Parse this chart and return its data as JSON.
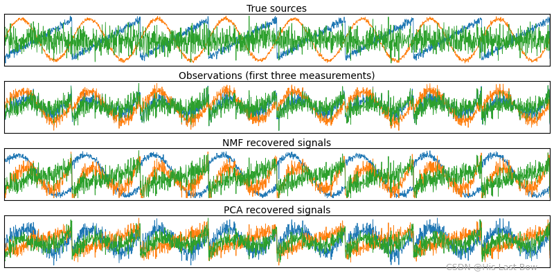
{
  "subplot_titles": [
    "True sources",
    "Observations (first three measurements)",
    "NMF recovered signals",
    "PCA recovered signals"
  ],
  "colors": [
    "#1f77b4",
    "#ff7f0e",
    "#2ca02c"
  ],
  "watermark": "CSDN @His Last Bow",
  "n_samples": 2000,
  "n_components": 3,
  "random_seed": 0,
  "linewidth": 0.6,
  "background_color": "#ffffff",
  "figsize": [
    8.0,
    4.0
  ],
  "dpi": 100
}
